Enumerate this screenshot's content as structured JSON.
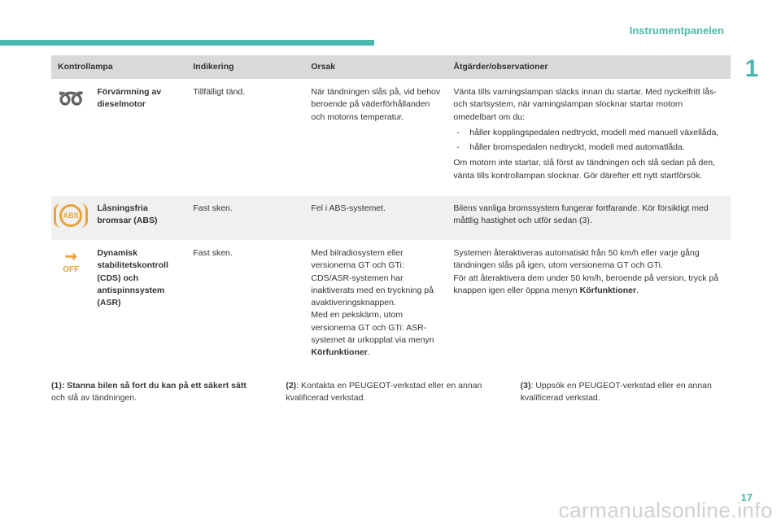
{
  "colors": {
    "accent": "#4cb8ac",
    "icon_amber": "#e8a33b",
    "header_bg": "#d9d9d9",
    "row_shaded": "#f0f0f0",
    "row_plain": "#ffffff",
    "text": "#3a3a3a"
  },
  "section_label": "Instrumentpanelen",
  "chapter_number": "1",
  "page_number": "17",
  "watermark": "carmanualsonline.info",
  "table": {
    "headers": {
      "lamp": "Kontrollampa",
      "indication": "Indikering",
      "cause": "Orsak",
      "action": "Åtgärder/observationer"
    },
    "rows": [
      {
        "icon": "coil",
        "name": "Förvärmning av dieselmotor",
        "indication": "Tillfälligt tänd.",
        "cause": "När tändningen slås på, vid behov beroende på väderförhållanden och motorns temperatur.",
        "action_pre": "Vänta tills varningslampan släcks innan du startar. Med nyckelfritt lås- och startsystem, när varningslampan slocknar startar motorn omedelbart om du:",
        "action_list": [
          "håller kopplingspedalen nedtryckt, modell med manuell växellåda,",
          "håller bromspedalen nedtryckt, modell med automatlåda."
        ],
        "action_post": "Om motorn inte startar, slå först av tändningen och slå sedan på den, vänta tills kontrollampan slocknar. Gör därefter ett nytt startförsök."
      },
      {
        "icon": "abs",
        "icon_label": "ABS",
        "name": "Låsningsfria bromsar (ABS)",
        "indication": "Fast sken.",
        "cause": "Fel i ABS-systemet.",
        "action_pre": "Bilens vanliga bromssystem fungerar fortfarande. Kör försiktigt med måttlig hastighet och utför sedan (3)."
      },
      {
        "icon": "off",
        "icon_top": "⇝",
        "icon_label": "OFF",
        "name": "Dynamisk stabilitetskontroll (CDS) och antispinnsystem (ASR)",
        "indication": "Fast sken.",
        "cause_parts": {
          "a": "Med bilradiosystem eller versionerna GT och GTi: CDS/ASR-systemen har inaktiverats med en tryckning på avaktiveringsknappen.",
          "b": "Med en pekskärm, utom versionerna GT och GTi: ASR-systemet är urkopplat via menyn ",
          "b_bold": "Körfunktioner",
          "b_tail": "."
        },
        "action_parts": {
          "a": "Systemen återaktiveras automatiskt från 50 km/h eller varje gång tändningen slås på igen, utom versionerna GT och GTi.",
          "b": "För att återaktivera dem under 50 km/h, beroende på version, tryck på knappen igen eller öppna menyn ",
          "b_bold": "Körfunktioner",
          "b_tail": "."
        }
      }
    ]
  },
  "footnotes": {
    "n1_label": "(1)",
    "n1_bold": ": Stanna bilen så fort du kan på ett säkert sätt",
    "n1_tail": " och slå av tändningen.",
    "n2_label": "(2)",
    "n2_text": ": Kontakta en PEUGEOT-verkstad eller en annan kvalificerad verkstad.",
    "n3_label": "(3)",
    "n3_text": ": Uppsök en PEUGEOT-verkstad eller en annan kvalificerad verkstad."
  }
}
